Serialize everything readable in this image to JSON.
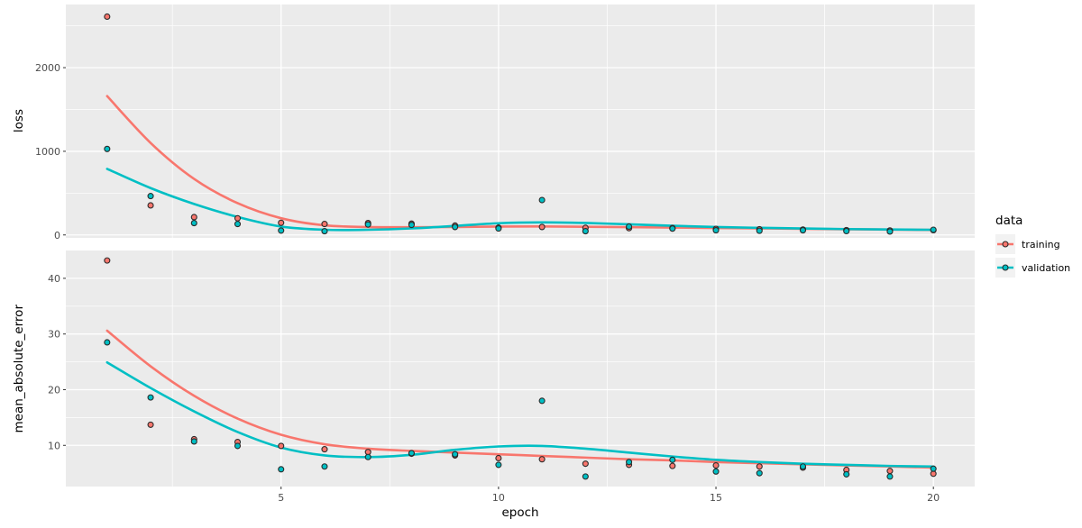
{
  "figure": {
    "background": "#FFFFFF",
    "panel_background": "#EBEBEB",
    "grid_color": "#FFFFFF",
    "axis_text_color": "#4D4D4D",
    "axis_title_color": "#000000",
    "tick_mark_color": "#333333",
    "point_outline_color": "#2B2B2B"
  },
  "legend": {
    "title": "data",
    "key_background": "#F2F2F2",
    "items": [
      {
        "label": "training",
        "color": "#F8766D"
      },
      {
        "label": "validation",
        "color": "#00BFC4"
      }
    ]
  },
  "chart_data": {
    "type": "scatter",
    "note": "two stacked facet panels sharing x axis; points plus loess smooth lines",
    "x": [
      1,
      2,
      3,
      4,
      5,
      6,
      7,
      8,
      9,
      10,
      11,
      12,
      13,
      14,
      15,
      16,
      17,
      18,
      19,
      20
    ],
    "xlabel": "epoch",
    "xlim": [
      0.05,
      20.95
    ],
    "xticks": [
      5,
      10,
      15,
      20
    ],
    "xticks_minor": [
      2.5,
      7.5,
      12.5,
      17.5
    ],
    "legend_title": "data",
    "legend_position": "right",
    "grid": true,
    "facets": [
      {
        "ylabel": "loss",
        "ylim": [
          -35,
          2755
        ],
        "yticks": [
          0,
          1000,
          2000
        ],
        "yticks_minor": [
          500,
          1500,
          2500
        ],
        "series": [
          {
            "name": "training",
            "color": "#F8766D",
            "points": [
              2610,
              353,
              213,
              199,
              145,
              131,
              142,
              135,
              112,
              88,
              95,
              85,
              81,
              83,
              72,
              68,
              64,
              58,
              54,
              57
            ],
            "smooth": [
              1660,
              1100,
              670,
              380,
              200,
              115,
              95,
              92,
              95,
              100,
              102,
              98,
              93,
              88,
              83,
              78,
              73,
              68,
              64,
              60
            ]
          },
          {
            "name": "validation",
            "color": "#00BFC4",
            "points": [
              1028,
              465,
              142,
              131,
              52,
              45,
              125,
              120,
              95,
              77,
              417,
              45,
              100,
              76,
              56,
              50,
              56,
              46,
              41,
              62
            ],
            "smooth": [
              790,
              560,
              370,
              215,
              100,
              62,
              62,
              78,
              108,
              140,
              150,
              143,
              127,
              110,
              95,
              85,
              77,
              70,
              65,
              62
            ]
          }
        ]
      },
      {
        "ylabel": "mean_absolute_error",
        "ylim": [
          2.6,
          45.0
        ],
        "yticks": [
          10,
          20,
          30,
          40
        ],
        "yticks_minor": [
          15,
          25,
          35,
          45
        ],
        "series": [
          {
            "name": "training",
            "color": "#F8766D",
            "points": [
              43.2,
              13.7,
              11.1,
              10.6,
              9.9,
              9.3,
              8.8,
              8.5,
              8.2,
              7.7,
              7.5,
              6.7,
              6.5,
              6.3,
              6.4,
              6.2,
              6.0,
              5.6,
              5.4,
              4.9
            ],
            "smooth": [
              30.6,
              24.2,
              18.9,
              14.8,
              11.9,
              10.2,
              9.4,
              9.0,
              8.7,
              8.4,
              8.1,
              7.8,
              7.5,
              7.3,
              7.0,
              6.8,
              6.6,
              6.4,
              6.2,
              6.0
            ]
          },
          {
            "name": "validation",
            "color": "#00BFC4",
            "points": [
              28.5,
              18.6,
              10.7,
              9.9,
              5.7,
              6.2,
              7.9,
              8.6,
              8.4,
              6.5,
              18.0,
              4.4,
              7.0,
              7.4,
              5.3,
              5.0,
              6.2,
              4.8,
              4.4,
              5.8
            ],
            "smooth": [
              24.9,
              20.3,
              16.1,
              12.4,
              9.6,
              8.2,
              7.9,
              8.3,
              9.2,
              9.8,
              9.9,
              9.4,
              8.7,
              8.0,
              7.4,
              7.0,
              6.7,
              6.5,
              6.3,
              6.2
            ]
          }
        ]
      }
    ]
  }
}
